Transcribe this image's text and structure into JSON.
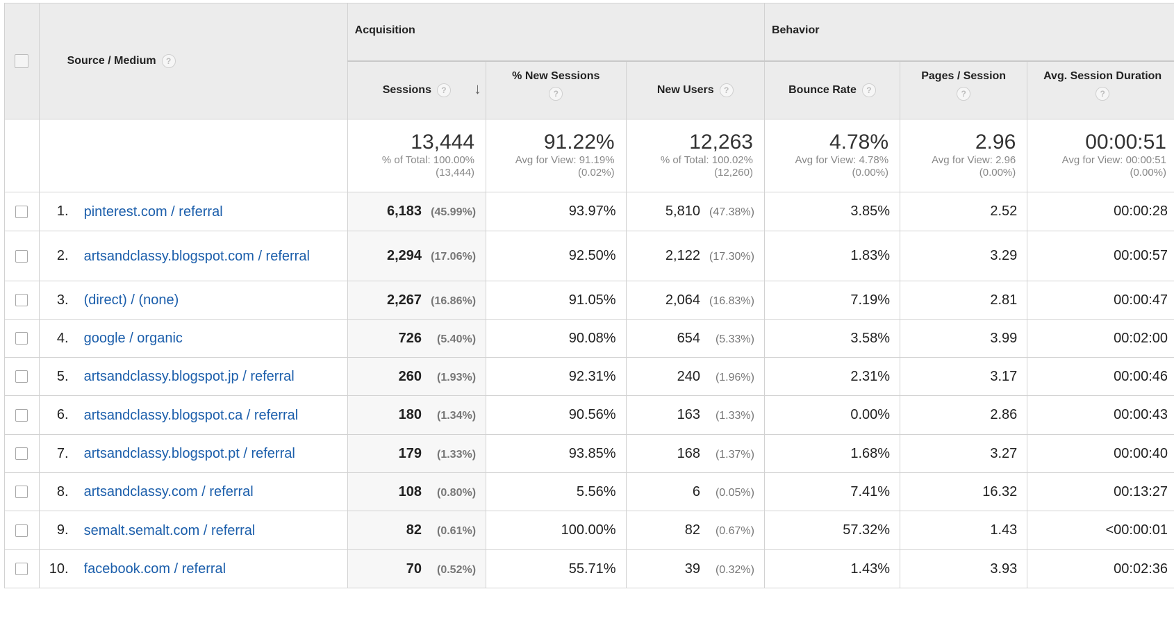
{
  "header": {
    "source_medium": "Source / Medium",
    "acquisition": "Acquisition",
    "behavior": "Behavior",
    "help_icon_glyph": "?",
    "sort_glyph": "↓",
    "metrics": {
      "sessions": "Sessions",
      "new_sessions": "% New Sessions",
      "new_users": "New Users",
      "bounce_rate": "Bounce Rate",
      "pages_session": "Pages / Session",
      "avg_duration": "Avg. Session Duration"
    }
  },
  "totals": {
    "sessions": {
      "value": "13,444",
      "line1": "% of Total: 100.00%",
      "line2": "(13,444)"
    },
    "new_sessions": {
      "value": "91.22%",
      "line1": "Avg for View: 91.19%",
      "line2": "(0.02%)"
    },
    "new_users": {
      "value": "12,263",
      "line1": "% of Total: 100.02%",
      "line2": "(12,260)"
    },
    "bounce_rate": {
      "value": "4.78%",
      "line1": "Avg for View: 4.78%",
      "line2": "(0.00%)"
    },
    "pages_session": {
      "value": "2.96",
      "line1": "Avg for View: 2.96",
      "line2": "(0.00%)"
    },
    "avg_duration": {
      "value": "00:00:51",
      "line1": "Avg for View: 00:00:51",
      "line2": "(0.00%)"
    }
  },
  "rows": [
    {
      "idx": "1.",
      "source": "pinterest.com / referral",
      "sessions": "6,183",
      "sessions_pct": "(45.99%)",
      "new_sessions": "93.97%",
      "new_users": "5,810",
      "new_users_pct": "(47.38%)",
      "bounce_rate": "3.85%",
      "pages_session": "2.52",
      "avg_duration": "00:00:28"
    },
    {
      "idx": "2.",
      "source": "artsandclassy.blogspot.com / referral",
      "sessions": "2,294",
      "sessions_pct": "(17.06%)",
      "new_sessions": "92.50%",
      "new_users": "2,122",
      "new_users_pct": "(17.30%)",
      "bounce_rate": "1.83%",
      "pages_session": "3.29",
      "avg_duration": "00:00:57"
    },
    {
      "idx": "3.",
      "source": "(direct) / (none)",
      "sessions": "2,267",
      "sessions_pct": "(16.86%)",
      "new_sessions": "91.05%",
      "new_users": "2,064",
      "new_users_pct": "(16.83%)",
      "bounce_rate": "7.19%",
      "pages_session": "2.81",
      "avg_duration": "00:00:47"
    },
    {
      "idx": "4.",
      "source": "google / organic",
      "sessions": "726",
      "sessions_pct": "(5.40%)",
      "new_sessions": "90.08%",
      "new_users": "654",
      "new_users_pct": "(5.33%)",
      "bounce_rate": "3.58%",
      "pages_session": "3.99",
      "avg_duration": "00:02:00"
    },
    {
      "idx": "5.",
      "source": "artsandclassy.blogspot.jp / referral",
      "sessions": "260",
      "sessions_pct": "(1.93%)",
      "new_sessions": "92.31%",
      "new_users": "240",
      "new_users_pct": "(1.96%)",
      "bounce_rate": "2.31%",
      "pages_session": "3.17",
      "avg_duration": "00:00:46"
    },
    {
      "idx": "6.",
      "source": "artsandclassy.blogspot.ca / referral",
      "sessions": "180",
      "sessions_pct": "(1.34%)",
      "new_sessions": "90.56%",
      "new_users": "163",
      "new_users_pct": "(1.33%)",
      "bounce_rate": "0.00%",
      "pages_session": "2.86",
      "avg_duration": "00:00:43"
    },
    {
      "idx": "7.",
      "source": "artsandclassy.blogspot.pt / referral",
      "sessions": "179",
      "sessions_pct": "(1.33%)",
      "new_sessions": "93.85%",
      "new_users": "168",
      "new_users_pct": "(1.37%)",
      "bounce_rate": "1.68%",
      "pages_session": "3.27",
      "avg_duration": "00:00:40"
    },
    {
      "idx": "8.",
      "source": "artsandclassy.com / referral",
      "sessions": "108",
      "sessions_pct": "(0.80%)",
      "new_sessions": "5.56%",
      "new_users": "6",
      "new_users_pct": "(0.05%)",
      "bounce_rate": "7.41%",
      "pages_session": "16.32",
      "avg_duration": "00:13:27"
    },
    {
      "idx": "9.",
      "source": "semalt.semalt.com / referral",
      "sessions": "82",
      "sessions_pct": "(0.61%)",
      "new_sessions": "100.00%",
      "new_users": "82",
      "new_users_pct": "(0.67%)",
      "bounce_rate": "57.32%",
      "pages_session": "1.43",
      "avg_duration": "<00:00:01"
    },
    {
      "idx": "10.",
      "source": "facebook.com / referral",
      "sessions": "70",
      "sessions_pct": "(0.52%)",
      "new_sessions": "55.71%",
      "new_users": "39",
      "new_users_pct": "(0.32%)",
      "bounce_rate": "1.43%",
      "pages_session": "3.93",
      "avg_duration": "00:02:36"
    }
  ]
}
